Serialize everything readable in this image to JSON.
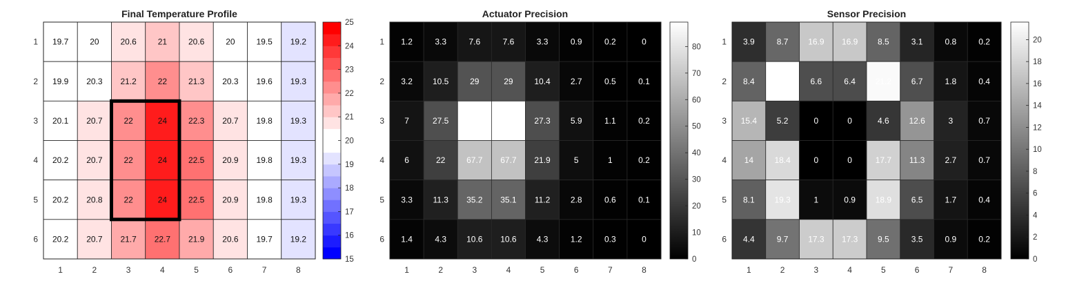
{
  "chart_data": [
    {
      "type": "heatmap",
      "title": "Final Temperature Profile",
      "x": [
        1,
        2,
        3,
        4,
        5,
        6,
        7,
        8
      ],
      "y": [
        1,
        2,
        3,
        4,
        5,
        6
      ],
      "x_tick_labels": [
        "1",
        "2",
        "3",
        "4",
        "5",
        "6",
        "7",
        "8"
      ],
      "y_tick_labels": [
        "1",
        "2",
        "3",
        "4",
        "5",
        "6"
      ],
      "values": [
        [
          19.7,
          20,
          20.6,
          21,
          20.6,
          20,
          19.5,
          19.2
        ],
        [
          19.9,
          20.3,
          21.2,
          22,
          21.3,
          20.3,
          19.6,
          19.3
        ],
        [
          20.1,
          20.7,
          22,
          24,
          22.3,
          20.7,
          19.8,
          19.3
        ],
        [
          20.2,
          20.7,
          22,
          24,
          22.5,
          20.9,
          19.8,
          19.3
        ],
        [
          20.2,
          20.8,
          22,
          24,
          22.5,
          20.9,
          19.8,
          19.3
        ],
        [
          20.2,
          20.7,
          21.7,
          22.7,
          21.9,
          20.6,
          19.7,
          19.2
        ]
      ],
      "colormap": "blue-white-red",
      "colorbar": {
        "range": [
          15,
          25
        ],
        "ticks": [
          15,
          16,
          17,
          18,
          19,
          20,
          21,
          22,
          23,
          24,
          25
        ],
        "tick_labels": [
          "15",
          "16",
          "17",
          "18",
          "19",
          "20",
          "21",
          "22",
          "23",
          "24",
          "25"
        ],
        "steps": 20
      },
      "highlight": {
        "rows": [
          3,
          5
        ],
        "cols": [
          3,
          4
        ],
        "color": "#000000"
      },
      "grid": true,
      "label_color": "#111111",
      "colors": {
        "low": "#0000ff",
        "mid": "#ffffff",
        "high": "#ff0000"
      }
    },
    {
      "type": "heatmap",
      "title": "Actuator Precision",
      "x": [
        1,
        2,
        3,
        4,
        5,
        6,
        7,
        8
      ],
      "y": [
        1,
        2,
        3,
        4,
        5,
        6
      ],
      "x_tick_labels": [
        "1",
        "2",
        "3",
        "4",
        "5",
        "6",
        "7",
        "8"
      ],
      "y_tick_labels": [
        "1",
        "2",
        "3",
        "4",
        "5",
        "6"
      ],
      "values": [
        [
          1.2,
          3.3,
          7.6,
          7.6,
          3.3,
          0.9,
          0.2,
          0
        ],
        [
          3.2,
          10.5,
          29,
          29,
          10.4,
          2.7,
          0.5,
          0.1
        ],
        [
          7,
          27.5,
          89.2,
          89.2,
          27.3,
          5.9,
          1.1,
          0.2
        ],
        [
          6,
          22,
          67.7,
          67.7,
          21.9,
          5,
          1,
          0.2
        ],
        [
          3.3,
          11.3,
          35.2,
          35.1,
          11.2,
          2.8,
          0.6,
          0.1
        ],
        [
          1.4,
          4.3,
          10.6,
          10.6,
          4.3,
          1.2,
          0.3,
          0
        ]
      ],
      "colormap": "gray",
      "colorbar": {
        "range": [
          0,
          89.2
        ],
        "ticks": [
          0,
          10,
          20,
          30,
          40,
          50,
          60,
          70,
          80
        ],
        "tick_labels": [
          "0",
          "10",
          "20",
          "30",
          "40",
          "50",
          "60",
          "70",
          "80"
        ]
      },
      "grid": true,
      "label_color": "#ffffff",
      "colors": {
        "low": "#000000",
        "high": "#ffffff"
      }
    },
    {
      "type": "heatmap",
      "title": "Sensor Precision",
      "x": [
        1,
        2,
        3,
        4,
        5,
        6,
        7,
        8
      ],
      "y": [
        1,
        2,
        3,
        4,
        5,
        6
      ],
      "x_tick_labels": [
        "1",
        "2",
        "3",
        "4",
        "5",
        "6",
        "7",
        "8"
      ],
      "y_tick_labels": [
        "1",
        "2",
        "3",
        "4",
        "5",
        "6"
      ],
      "values": [
        [
          3.9,
          8.7,
          16.9,
          16.9,
          8.5,
          3.1,
          0.8,
          0.2
        ],
        [
          8.4,
          21.6,
          6.6,
          6.4,
          21.2,
          6.7,
          1.8,
          0.4
        ],
        [
          15.4,
          5.2,
          0,
          0,
          4.6,
          12.6,
          3,
          0.7
        ],
        [
          14,
          18.4,
          0,
          0,
          17.7,
          11.3,
          2.7,
          0.7
        ],
        [
          8.1,
          19.3,
          1,
          0.9,
          18.9,
          6.5,
          1.7,
          0.4
        ],
        [
          4.4,
          9.7,
          17.3,
          17.3,
          9.5,
          3.5,
          0.9,
          0.2
        ]
      ],
      "colormap": "gray",
      "colorbar": {
        "range": [
          0,
          21.6
        ],
        "ticks": [
          0,
          2,
          4,
          6,
          8,
          10,
          12,
          14,
          16,
          18,
          20
        ],
        "tick_labels": [
          "0",
          "2",
          "4",
          "6",
          "8",
          "10",
          "12",
          "14",
          "16",
          "18",
          "20"
        ]
      },
      "grid": true,
      "label_color": "#ffffff",
      "colors": {
        "low": "#000000",
        "high": "#ffffff"
      }
    }
  ]
}
